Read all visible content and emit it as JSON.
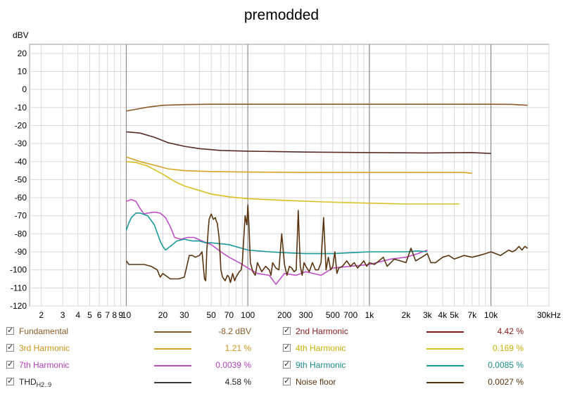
{
  "chart_data": {
    "type": "line",
    "title": "premodded",
    "ylabel": "dBV",
    "x_unit_label": "Hz",
    "xscale": "log",
    "xlim": [
      1.6,
      30000
    ],
    "ylim": [
      -120,
      25
    ],
    "grid": true,
    "yticks": [
      20,
      10,
      0,
      -10,
      -20,
      -30,
      -40,
      -50,
      -60,
      -70,
      -80,
      -90,
      -100,
      -110,
      -120
    ],
    "yticklabels": [
      "20",
      "10",
      "0",
      "-10",
      "-20",
      "-30",
      "-40",
      "-50",
      "-60",
      "-70",
      "-80",
      "-90",
      "-100",
      "-110",
      "-120"
    ],
    "xticks": [
      2,
      3,
      4,
      5,
      6,
      7,
      8,
      9,
      10,
      20,
      30,
      50,
      70,
      100,
      200,
      300,
      500,
      700,
      1000,
      2000,
      3000,
      4000,
      5000,
      7000,
      10000,
      30000
    ],
    "xticklabels": [
      "2",
      "3",
      "4",
      "5",
      "6",
      "7",
      "8",
      "9",
      "10",
      "20",
      "30",
      "50",
      "70",
      "100",
      "200",
      "300",
      "500",
      "700",
      "1k",
      "2k",
      "3k",
      "4k",
      "5k",
      "7k",
      "10k",
      "30kHz"
    ],
    "series": [
      {
        "name": "Fundamental",
        "color": "#8c5a26",
        "x": [
          10,
          12,
          15,
          20,
          30,
          50,
          100,
          300,
          1000,
          3000,
          10000,
          15000,
          20000
        ],
        "y": [
          -12,
          -11,
          -9.8,
          -8.8,
          -8.4,
          -8.2,
          -8.2,
          -8.2,
          -8.2,
          -8.2,
          -8.2,
          -8.3,
          -8.8
        ]
      },
      {
        "name": "2nd Harmonic",
        "color": "#5a2a2a",
        "x": [
          10,
          13,
          17,
          22,
          30,
          40,
          60,
          100,
          300,
          1000,
          3000,
          7000,
          10000
        ],
        "y": [
          -23.5,
          -24.2,
          -26.5,
          -29.5,
          -31.5,
          -32.8,
          -33.8,
          -34.2,
          -34.7,
          -35.0,
          -35.2,
          -35.0,
          -35.5
        ]
      },
      {
        "name": "3rd Harmonic",
        "color": "#d9a326",
        "x": [
          10,
          13,
          17,
          22,
          30,
          50,
          100,
          300,
          1000,
          3000,
          6000,
          7000
        ],
        "y": [
          -37.5,
          -40,
          -42,
          -44,
          -45,
          -45.5,
          -45.8,
          -46,
          -46,
          -46,
          -46,
          -46.5
        ]
      },
      {
        "name": "4th Harmonic",
        "color": "#d9c020",
        "x": [
          10,
          12,
          15,
          20,
          25,
          30,
          40,
          50,
          70,
          100,
          200,
          500,
          1000,
          2000,
          4000,
          5500
        ],
        "y": [
          -40,
          -40.5,
          -42.5,
          -47,
          -51,
          -53.5,
          -56,
          -58,
          -59.5,
          -60.5,
          -61.5,
          -62.5,
          -63,
          -63.5,
          -63.5,
          -63.5
        ]
      },
      {
        "name": "7th Harmonic",
        "color": "#c04fc8",
        "x": [
          10,
          11,
          12,
          13,
          14,
          15,
          17,
          19,
          21,
          23,
          25,
          28,
          32,
          36,
          42,
          50,
          60,
          70,
          85,
          100,
          120,
          150,
          170,
          200,
          250,
          300,
          400,
          500,
          700,
          1000,
          1500,
          2000,
          2500,
          3000
        ],
        "y": [
          -62,
          -61,
          -62,
          -66,
          -69,
          -68.5,
          -68,
          -68.5,
          -71,
          -76,
          -82,
          -83,
          -82,
          -82,
          -84,
          -86,
          -90,
          -93,
          -96,
          -99,
          -102,
          -103,
          -108,
          -102,
          -103,
          -101,
          -103,
          -99,
          -98,
          -97,
          -94,
          -93,
          -91,
          -89
        ]
      },
      {
        "name": "9th Harmonic",
        "color": "#1a9a9a",
        "x": [
          10,
          10.5,
          11,
          12,
          13,
          15,
          17,
          19,
          20,
          21,
          22,
          24,
          26,
          30,
          35,
          40,
          45,
          50,
          70,
          100,
          150,
          200,
          300,
          500,
          700,
          1000,
          1500,
          2000,
          2500,
          3000
        ],
        "y": [
          -78,
          -74,
          -71,
          -68.5,
          -68.5,
          -70,
          -75,
          -84,
          -87,
          -89,
          -88,
          -86,
          -84,
          -83,
          -84,
          -84,
          -85,
          -85,
          -86,
          -89,
          -90,
          -90.5,
          -91,
          -91,
          -90.5,
          -90,
          -90,
          -90,
          -89.5,
          -90
        ]
      },
      {
        "name": "THD H2..9",
        "color": "#3a3a3a",
        "x": [],
        "y": []
      },
      {
        "name": "Noise floor",
        "color": "#5a3410",
        "x": [
          10,
          10.5,
          12,
          14,
          16,
          18,
          19,
          20,
          23,
          27,
          30,
          33,
          35,
          37,
          40,
          42,
          44,
          45,
          46,
          47,
          48,
          50,
          52,
          54,
          55,
          56,
          58,
          60,
          62,
          65,
          68,
          70,
          72,
          75,
          78,
          80,
          85,
          88,
          90,
          95,
          98,
          100,
          102,
          105,
          110,
          115,
          120,
          130,
          140,
          150,
          155,
          160,
          170,
          180,
          190,
          200,
          210,
          220,
          230,
          240,
          250,
          260,
          270,
          280,
          290,
          300,
          320,
          340,
          360,
          380,
          400,
          420,
          440,
          460,
          480,
          500,
          520,
          540,
          560,
          600,
          650,
          700,
          750,
          800,
          850,
          900,
          950,
          1000,
          1100,
          1200,
          1300,
          1400,
          1500,
          1600,
          1800,
          2000,
          2200,
          2400,
          2700,
          3000,
          3200,
          3500,
          4000,
          4500,
          5000,
          6000,
          7000,
          8000,
          9000,
          10000,
          12000,
          14000,
          15000,
          16000,
          17000,
          18000,
          19000,
          20000
        ],
        "y": [
          -95,
          -97,
          -97,
          -97,
          -98,
          -100,
          -104,
          -102,
          -105,
          -105,
          -104,
          -92,
          -92,
          -93,
          -92,
          -90,
          -105,
          -106,
          -89,
          -80,
          -72,
          -69,
          -72,
          -71,
          -73,
          -74,
          -82,
          -100,
          -104,
          -106,
          -103,
          -104,
          -107,
          -102,
          -106,
          -104,
          -101,
          -100,
          -96,
          -70,
          -75,
          -64,
          -75,
          -96,
          -101,
          -103,
          -96,
          -101,
          -98,
          -100,
          -103,
          -96,
          -99,
          -100,
          -80,
          -97,
          -103,
          -98,
          -99,
          -101,
          -100,
          -67,
          -98,
          -103,
          -96,
          -98,
          -101,
          -96,
          -100,
          -100,
          -96,
          -71,
          -100,
          -93,
          -100,
          -98,
          -90,
          -102,
          -99,
          -98,
          -95,
          -98,
          -96,
          -99,
          -97,
          -95,
          -98,
          -96,
          -97,
          -95,
          -93,
          -98,
          -96,
          -94,
          -95,
          -96,
          -88,
          -95,
          -93,
          -91,
          -96,
          -96,
          -93,
          -92,
          -94,
          -92,
          -93,
          -92,
          -91,
          -90,
          -92,
          -89,
          -90,
          -89,
          -87,
          -89,
          -87,
          -88
        ]
      }
    ]
  },
  "legend": [
    {
      "name": "Fundamental",
      "value": "-8.2 dBV",
      "color": "#8c5a26",
      "text_color": "#8c5a26"
    },
    {
      "name": "2nd Harmonic",
      "value": "4.42 %",
      "color": "#8b1a1a",
      "text_color": "#8b1a1a"
    },
    {
      "name": "3rd Harmonic",
      "value": "1.21 %",
      "color": "#d9a326",
      "text_color": "#c9941a"
    },
    {
      "name": "4th Harmonic",
      "value": "0.169 %",
      "color": "#d9c020",
      "text_color": "#c9b000"
    },
    {
      "name": "7th Harmonic",
      "value": "0.0039 %",
      "color": "#c04fc8",
      "text_color": "#b03fb8"
    },
    {
      "name": "9th Harmonic",
      "value": "0.0085 %",
      "color": "#1a9a9a",
      "text_color": "#1a8a8a"
    },
    {
      "name": "THD",
      "sub": "H2..9",
      "value": "4.58 %",
      "color": "#3a3a3a",
      "text_color": "#222222"
    },
    {
      "name": "Noise floor",
      "value": "0.0027 %",
      "color": "#5a3410",
      "text_color": "#5a3410"
    }
  ]
}
